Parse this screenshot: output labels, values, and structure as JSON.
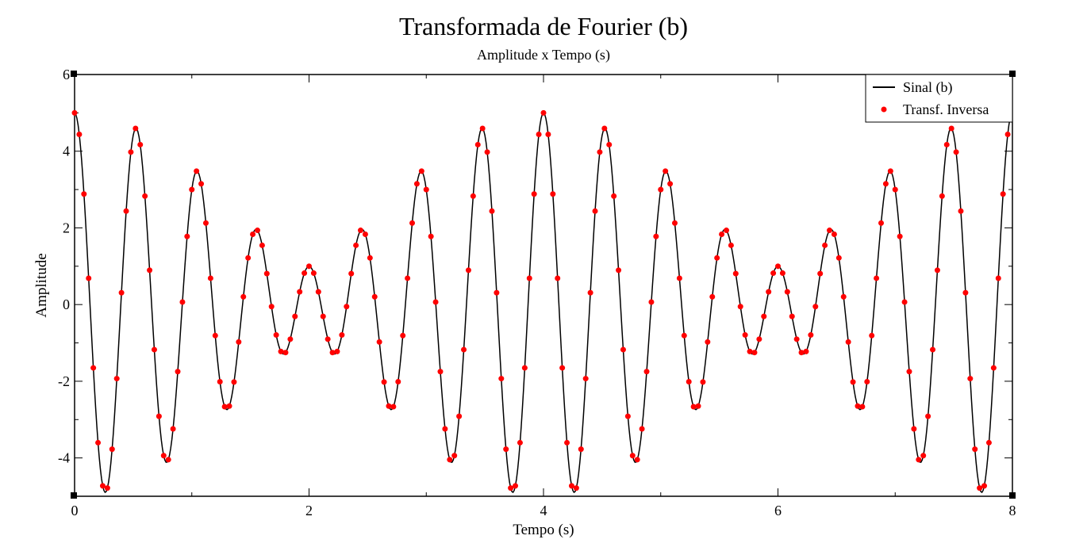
{
  "chart_data": {
    "type": "line",
    "title": "Transformada de Fourier (b)",
    "subtitle": "Amplitude x Tempo (s)",
    "xlabel": "Tempo (s)",
    "ylabel": "Amplitude",
    "xlim": [
      0,
      8
    ],
    "ylim": [
      -5,
      6
    ],
    "xticks": [
      0,
      2,
      4,
      6,
      8
    ],
    "yticks": [
      -4,
      -2,
      0,
      2,
      4,
      6
    ],
    "grid": false,
    "legend_position": "top-right",
    "series": [
      {
        "name": "Sinal (b)",
        "style": "line",
        "color": "#000000",
        "formula": "3*cos(2*pi*t) + 2*sin(2*pi*t/3) + sin(2*pi*t/0.5)... sampled",
        "x_start": 0,
        "x_end": 8,
        "samples": 800
      },
      {
        "name": "Transf. Inversa",
        "style": "markers",
        "color": "#ff0000",
        "x_start": 0,
        "x_end": 7.96,
        "step": 0.04
      }
    ]
  }
}
